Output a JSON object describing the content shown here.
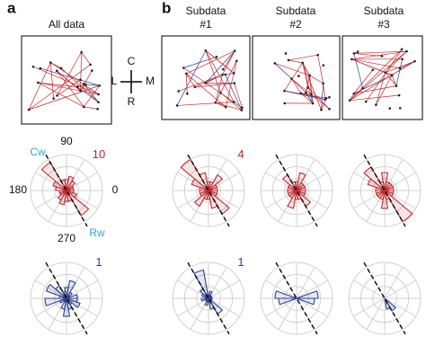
{
  "figure": {
    "panels": [
      "a",
      "b"
    ],
    "titles": [
      "All data",
      [
        "Subdata",
        "#1"
      ],
      [
        "Subdata",
        "#2"
      ],
      [
        "Subdata",
        "#3"
      ]
    ],
    "compass": {
      "top": "C",
      "left": "L",
      "right": "M",
      "bottom": "R"
    }
  },
  "chart_data": [
    {
      "type": "polar-bar",
      "color": "#c0282d",
      "x": [
        10,
        30,
        50,
        70,
        90,
        110,
        130,
        150,
        170,
        190,
        210,
        230,
        250,
        270,
        290,
        310,
        330,
        350
      ],
      "values": [
        2,
        2,
        3,
        4,
        3,
        3,
        9,
        4,
        3,
        2,
        2,
        3,
        4,
        3,
        3,
        8,
        3,
        2
      ],
      "rlim": [
        0,
        10
      ],
      "show_rlim": true,
      "thetaticks": [
        0,
        90,
        180,
        270
      ],
      "annotations": [
        "Cw",
        "Rw"
      ],
      "axis_angle": 120
    },
    {
      "type": "polar-bar",
      "color": "#c0282d",
      "x": [
        10,
        30,
        50,
        70,
        90,
        110,
        130,
        150,
        170,
        190,
        210,
        230,
        250,
        270,
        290,
        310,
        330,
        350
      ],
      "values": [
        1,
        1,
        2,
        1,
        1,
        2,
        4,
        2,
        1,
        1,
        1,
        2,
        1,
        1,
        2,
        3,
        1,
        1
      ],
      "rlim": [
        0,
        4
      ],
      "show_rlim": true,
      "axis_angle": 120
    },
    {
      "type": "polar-bar",
      "color": "#c0282d",
      "x": [
        10,
        30,
        50,
        70,
        90,
        110,
        130,
        150,
        170,
        190,
        210,
        230,
        250,
        270,
        290,
        310,
        330,
        350
      ],
      "values": [
        1,
        1,
        1,
        2,
        1,
        1,
        2,
        1,
        1,
        1,
        1,
        1,
        2,
        1,
        1,
        2,
        1,
        1
      ],
      "rlim": [
        0,
        4
      ],
      "show_rlim": false,
      "axis_angle": 120
    },
    {
      "type": "polar-bar",
      "color": "#c0282d",
      "x": [
        10,
        30,
        50,
        70,
        90,
        110,
        130,
        150,
        170,
        190,
        210,
        230,
        250,
        270,
        290,
        310,
        330,
        350
      ],
      "values": [
        1,
        1,
        1,
        1,
        2,
        1,
        3,
        2,
        1,
        1,
        1,
        1,
        1,
        2,
        1,
        4,
        1,
        1
      ],
      "rlim": [
        0,
        4
      ],
      "show_rlim": false,
      "axis_angle": 120
    },
    {
      "type": "polar-bar",
      "color": "#2b3f8f",
      "x": [
        10,
        30,
        50,
        70,
        90,
        110,
        130,
        150,
        170,
        190,
        210,
        230,
        250,
        270,
        290,
        310,
        330,
        350
      ],
      "values": [
        0.3,
        0.1,
        0.2,
        0.5,
        0.3,
        0.2,
        0.4,
        0.6,
        0.2,
        0.6,
        0.2,
        0.1,
        0.3,
        0.5,
        0.3,
        0.2,
        0.4,
        0.3
      ],
      "rlim": [
        0,
        1
      ],
      "show_rlim": true,
      "axis_angle": 120
    },
    {
      "type": "polar-bar",
      "color": "#2b3f8f",
      "x": [
        10,
        30,
        50,
        70,
        90,
        110,
        130,
        150,
        170,
        190,
        210,
        230,
        250,
        270,
        290,
        310,
        330,
        350
      ],
      "values": [
        0.1,
        0,
        0.1,
        0.2,
        0.1,
        0.8,
        0.3,
        0.2,
        0.1,
        0.2,
        0,
        0.1,
        0.2,
        0.1,
        0.3,
        0.5,
        0.1,
        0.1
      ],
      "rlim": [
        0,
        1
      ],
      "show_rlim": true,
      "axis_angle": 120
    },
    {
      "type": "polar-bar",
      "color": "#2b3f8f",
      "x": [
        10,
        30,
        50,
        70,
        90,
        110,
        130,
        150,
        170,
        190,
        210,
        230,
        250,
        270,
        290,
        310,
        330,
        350
      ],
      "values": [
        0.6,
        0,
        0,
        0,
        0,
        0,
        0,
        0,
        0.6,
        0.5,
        0,
        0,
        0,
        0,
        0,
        0,
        0,
        0.5
      ],
      "rlim": [
        0,
        1
      ],
      "show_rlim": false,
      "axis_angle": 120
    },
    {
      "type": "polar-bar",
      "color": "#2b3f8f",
      "x": [
        10,
        30,
        50,
        70,
        90,
        110,
        130,
        150,
        170,
        190,
        210,
        230,
        250,
        270,
        290,
        310,
        330,
        350
      ],
      "values": [
        0,
        0,
        0,
        0,
        0,
        0,
        0,
        0,
        0,
        0,
        0,
        0,
        0,
        0,
        0.3,
        0.4,
        0,
        0
      ],
      "rlim": [
        0,
        1
      ],
      "show_rlim": false,
      "axis_angle": 120
    }
  ]
}
